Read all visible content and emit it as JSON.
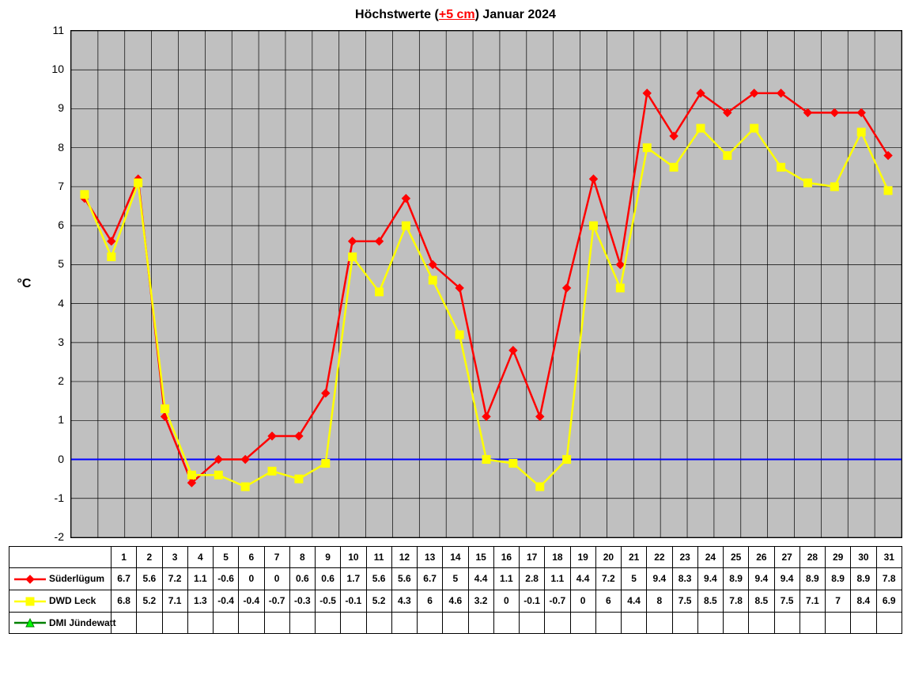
{
  "chart": {
    "type": "line",
    "title_prefix": "Höchstwerte (",
    "title_highlight": "+5 cm",
    "title_suffix": ") Januar 2024",
    "title_fontsize": 16,
    "background_color": "#c0c0c0",
    "grid_color": "#000000",
    "zero_line_color": "#0000ff",
    "zero_line_width": 2,
    "ylabel": "°C",
    "ylim": [
      -2,
      11
    ],
    "ytick_step": 1,
    "yticks": [
      -2,
      -1,
      0,
      1,
      2,
      3,
      4,
      5,
      6,
      7,
      8,
      9,
      10,
      11
    ],
    "x_categories": [
      "1",
      "2",
      "3",
      "4",
      "5",
      "6",
      "7",
      "8",
      "9",
      "10",
      "11",
      "12",
      "13",
      "14",
      "15",
      "16",
      "17",
      "18",
      "19",
      "20",
      "21",
      "22",
      "23",
      "24",
      "25",
      "26",
      "27",
      "28",
      "29",
      "30",
      "31"
    ],
    "line_width": 2.5,
    "marker_size": 5,
    "series": [
      {
        "name": "Süderlügum",
        "color": "#ff0000",
        "marker": "diamond",
        "marker_fill": "#ff0000",
        "values": [
          6.7,
          5.6,
          7.2,
          1.1,
          -0.6,
          0,
          0,
          0.6,
          0.6,
          1.7,
          5.6,
          5.6,
          6.7,
          5,
          4.4,
          1.1,
          2.8,
          1.1,
          4.4,
          7.2,
          5,
          9.4,
          8.3,
          9.4,
          8.9,
          9.4,
          9.4,
          8.9,
          8.9,
          8.9,
          7.8
        ]
      },
      {
        "name": "DWD Leck",
        "color": "#ffff00",
        "marker": "square",
        "marker_fill": "#ffff00",
        "values": [
          6.8,
          5.2,
          7.1,
          1.3,
          -0.4,
          -0.4,
          -0.7,
          -0.3,
          -0.5,
          -0.1,
          5.2,
          4.3,
          6,
          4.6,
          3.2,
          0,
          -0.1,
          -0.7,
          0,
          6,
          4.4,
          8,
          7.5,
          8.5,
          7.8,
          8.5,
          7.5,
          7.1,
          7,
          8.4,
          6.9
        ]
      },
      {
        "name": "DMI Jündewatt",
        "color": "#008000",
        "marker": "triangle",
        "marker_fill": "#00ff00",
        "values": []
      }
    ]
  },
  "table": {
    "header_empty": "",
    "col_width_legend": 120
  }
}
